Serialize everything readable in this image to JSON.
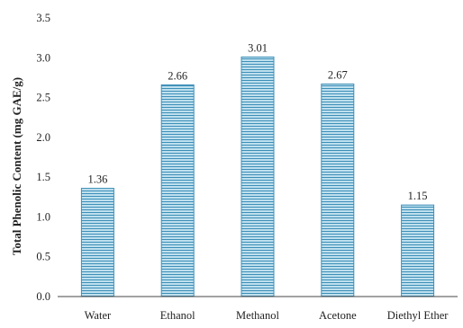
{
  "chart_data": {
    "type": "bar",
    "title": "",
    "xlabel": "",
    "ylabel": "Total Phenolic Content (mg GAE/g)",
    "ylim": [
      0,
      3.5
    ],
    "yticks": [
      "0.0",
      "0.5",
      "1.0",
      "1.5",
      "2.0",
      "2.5",
      "3.0",
      "3.5"
    ],
    "grid": false,
    "legend": "none",
    "categories": [
      "Water",
      "Ethanol",
      "Methanol",
      "Acetone",
      "Diethyl Ether"
    ],
    "values": [
      1.36,
      2.66,
      3.01,
      2.67,
      1.15
    ],
    "data_labels": [
      "1.36",
      "2.66",
      "3.01",
      "2.67",
      "1.15"
    ],
    "bar_color": "#3d8fb8",
    "bar_stripe_color": "#bfe0ee",
    "axis_color": "#444444"
  }
}
